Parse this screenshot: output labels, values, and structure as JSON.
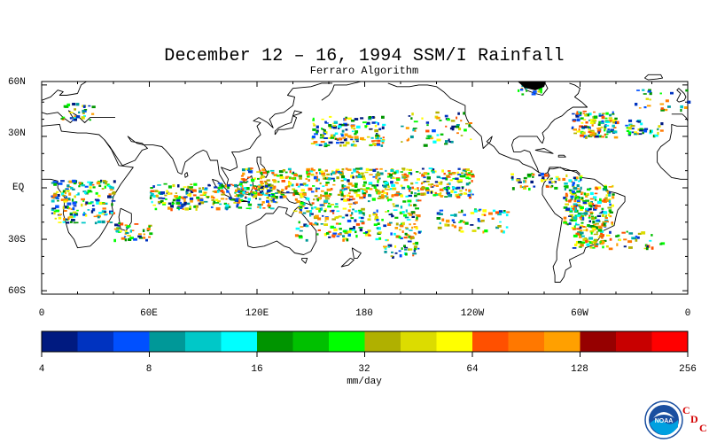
{
  "title": "December 12 – 16, 1994 SSM/I Rainfall",
  "subtitle": "Ferraro Algorithm",
  "lat_labels": [
    "60N",
    "30N",
    "EQ",
    "30S",
    "60S"
  ],
  "lon_labels": [
    "0",
    "60E",
    "120E",
    "180",
    "120W",
    "60W",
    "0"
  ],
  "colorbar": {
    "colors": [
      "#001a80",
      "#0033c0",
      "#0050ff",
      "#009898",
      "#00c8c8",
      "#00ffff",
      "#009400",
      "#00c000",
      "#00ff00",
      "#b0b000",
      "#dcdc00",
      "#ffff00",
      "#ff5000",
      "#ff7800",
      "#ffa000",
      "#960000",
      "#c80000",
      "#ff0000"
    ],
    "tick_labels": [
      "4",
      "8",
      "16",
      "32",
      "64",
      "128",
      "256"
    ],
    "unit": "mm/day"
  },
  "logo": {
    "text": "NOAA",
    "cdc_letters": [
      "C",
      "D",
      "C"
    ]
  }
}
